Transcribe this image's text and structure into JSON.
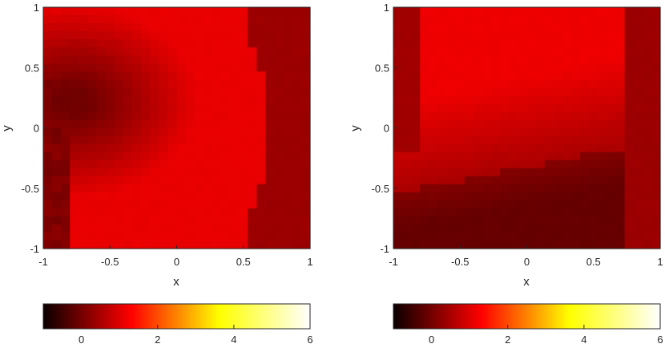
{
  "chart_data": [
    {
      "type": "heatmap",
      "title": "",
      "xlabel": "x",
      "ylabel": "y",
      "xlim": [
        -1,
        1
      ],
      "ylim": [
        -1,
        1
      ],
      "xticks": [
        "-1",
        "-0.5",
        "0",
        "0.5",
        "1"
      ],
      "yticks": [
        "-1",
        "-0.5",
        "0",
        "0.5",
        "1"
      ],
      "colormap": "hot",
      "clim": [
        -1,
        6
      ],
      "colorbar_ticks": [
        "0",
        "2",
        "4",
        "6"
      ],
      "colorbar_position": "bottom",
      "grid": false,
      "pattern": "dark region on the left around y = 0.2, bright red center-right, darker band for x > 0.7"
    },
    {
      "type": "heatmap",
      "title": "",
      "xlabel": "x",
      "ylabel": "y",
      "xlim": [
        -1,
        1
      ],
      "ylim": [
        -1,
        1
      ],
      "xticks": [
        "-1",
        "-0.5",
        "0",
        "0.5",
        "1"
      ],
      "yticks": [
        "-1",
        "-0.5",
        "0",
        "0.5",
        "1"
      ],
      "colormap": "hot",
      "clim": [
        -1,
        6
      ],
      "colorbar_ticks": [
        "0",
        "2",
        "4",
        "6"
      ],
      "colorbar_position": "bottom",
      "grid": false,
      "pattern": "bright red upper region, dark region in lower half, darker band for x > 0.7"
    }
  ],
  "colors": {
    "axis": "#262626",
    "outer_band": "#700000",
    "cmap_low": "#0a0000",
    "cmap_high": "#ffffff"
  }
}
